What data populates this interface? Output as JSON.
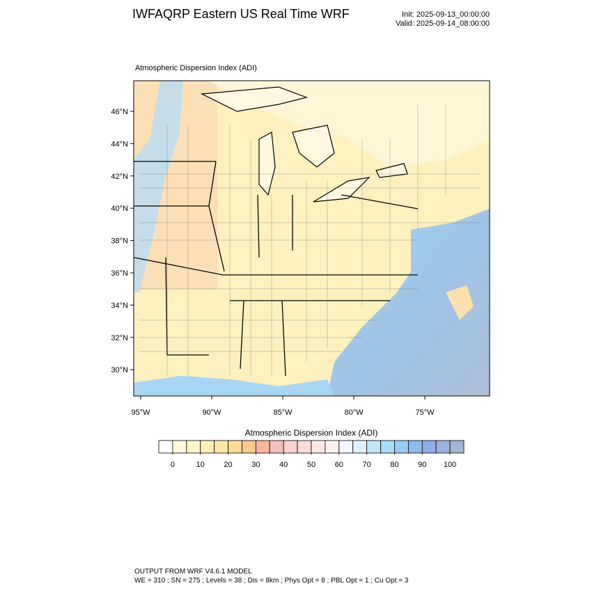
{
  "header": {
    "title": "IWFAQRP Eastern US Real Time WRF",
    "init": "Init: 2025-09-13_00:00:00",
    "valid": "Valid: 2025-09-14_08:00:00"
  },
  "map": {
    "label": "Atmospheric Dispersion Index   (ADI)",
    "lat_ticks": [
      {
        "value": 46,
        "label": "46°N"
      },
      {
        "value": 44,
        "label": "44°N"
      },
      {
        "value": 42,
        "label": "42°N"
      },
      {
        "value": 40,
        "label": "40°N"
      },
      {
        "value": 38,
        "label": "38°N"
      },
      {
        "value": 36,
        "label": "36°N"
      },
      {
        "value": 34,
        "label": "34°N"
      },
      {
        "value": 32,
        "label": "32°N"
      },
      {
        "value": 30,
        "label": "30°N"
      }
    ],
    "lon_ticks": [
      {
        "value": -95,
        "label": "95°W"
      },
      {
        "value": -90,
        "label": "90°W"
      },
      {
        "value": -85,
        "label": "85°W"
      },
      {
        "value": -80,
        "label": "80°W"
      },
      {
        "value": -75,
        "label": "75°W"
      }
    ]
  },
  "colorbar": {
    "title": "Atmospheric Dispersion Index  (ADI)",
    "lim": [
      -5,
      105
    ],
    "ticks": [
      0,
      10,
      20,
      30,
      40,
      50,
      60,
      70,
      80,
      90,
      100
    ],
    "colors": [
      "#ffffff",
      "#fffbdc",
      "#fff5c8",
      "#ffefb4",
      "#ffe6a4",
      "#fdd898",
      "#f9c790",
      "#f5b5a0",
      "#f4c0bc",
      "#f8d0cc",
      "#fadcd8",
      "#fce6e4",
      "#fdf2f0",
      "#f4f4fc",
      "#e0f0fc",
      "#bfe6fb",
      "#a6dcf8",
      "#98ccf2",
      "#90bcee",
      "#8eaee8",
      "#9ab4dc",
      "#a2b8d0"
    ]
  },
  "footer": {
    "line1": "OUTPUT FROM WRF V4.6.1 MODEL",
    "line2": "WE = 310 ; SN = 275 ; Levels = 38 ; Dis = 8km ; Phys Opt = 8 ; PBL Opt = 1 ; Cu Opt = 3"
  }
}
